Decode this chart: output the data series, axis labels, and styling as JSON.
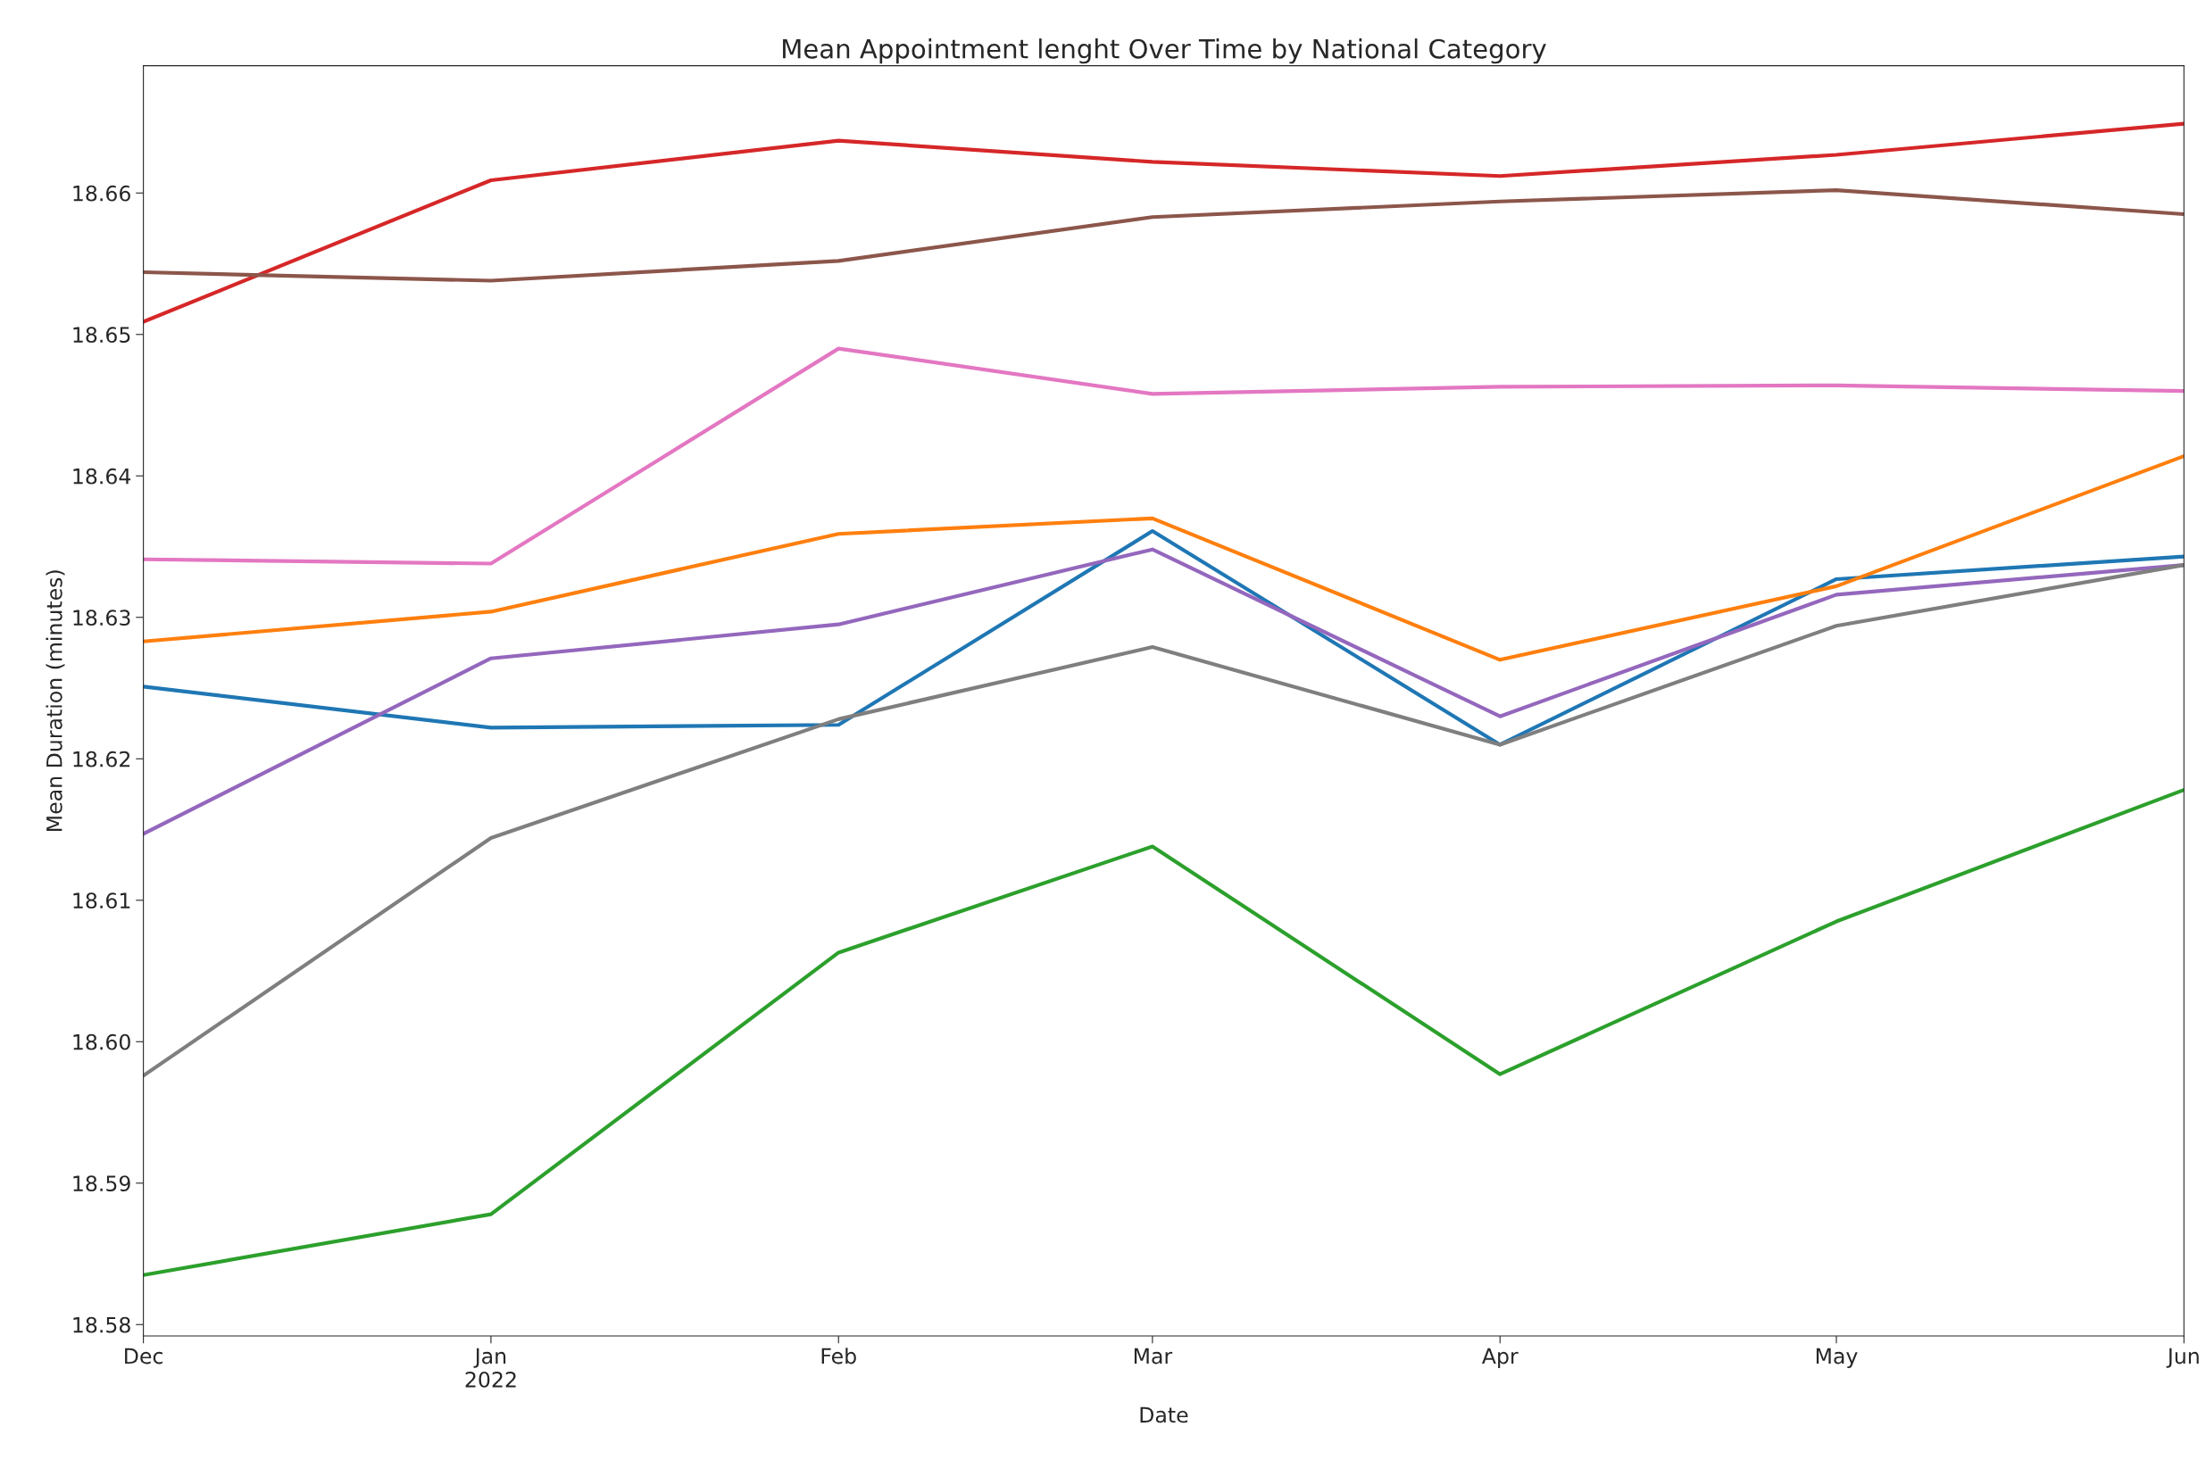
{
  "chart_data": {
    "type": "line",
    "title": "Mean Appointment lenght Over Time by National Category",
    "xlabel": "Date",
    "ylabel": "Mean Duration (minutes)",
    "x": [
      "2021-12",
      "2022-01",
      "2022-02",
      "2022-03",
      "2022-04",
      "2022-05",
      "2022-06"
    ],
    "xlim": [
      "2021-12",
      "2022-06"
    ],
    "xticks": [
      {
        "value": "2021-12",
        "label": "Dec"
      },
      {
        "value": "2022-01",
        "label": "Jan\n2022"
      },
      {
        "value": "2022-02",
        "label": "Feb"
      },
      {
        "value": "2022-03",
        "label": "Mar"
      },
      {
        "value": "2022-04",
        "label": "Apr"
      },
      {
        "value": "2022-05",
        "label": "May"
      },
      {
        "value": "2022-06",
        "label": "Jun"
      }
    ],
    "ylim": [
      18.5792,
      18.669
    ],
    "yticks": [
      18.58,
      18.59,
      {
        "value": 18.6,
        "label": "18.60"
      },
      18.61,
      18.62,
      18.63,
      18.64,
      18.65,
      18.66
    ],
    "grid": false,
    "series": [
      {
        "color": "#1f77b4",
        "values": [
          18.6251,
          18.6222,
          18.6224,
          18.6361,
          18.621,
          18.6327,
          18.6343
        ]
      },
      {
        "color": "#ff7f0e",
        "values": [
          18.6283,
          18.6304,
          18.6359,
          18.637,
          18.627,
          18.6322,
          18.6414
        ]
      },
      {
        "color": "#2ca02c",
        "values": [
          18.5835,
          18.5878,
          18.6063,
          18.6138,
          18.5977,
          18.6085,
          18.6178
        ]
      },
      {
        "color": "#d62728",
        "values": [
          18.6509,
          18.6609,
          18.6637,
          18.6622,
          18.6612,
          18.6627,
          18.6649
        ]
      },
      {
        "color": "#9467bd",
        "values": [
          18.6147,
          18.6271,
          18.6295,
          18.6348,
          18.623,
          18.6316,
          18.6337
        ]
      },
      {
        "color": "#8c564b",
        "values": [
          18.6544,
          18.6538,
          18.6552,
          18.6583,
          18.6594,
          18.6602,
          18.6585
        ]
      },
      {
        "color": "#e377c2",
        "values": [
          18.6341,
          18.6338,
          18.649,
          18.6458,
          18.6463,
          18.6464,
          18.646
        ]
      },
      {
        "color": "#7f7f7f",
        "values": [
          18.5976,
          18.6144,
          18.6228,
          18.6279,
          18.621,
          18.6294,
          18.6337
        ]
      }
    ]
  }
}
